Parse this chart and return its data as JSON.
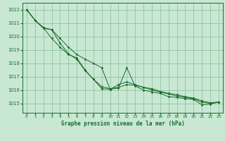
{
  "title": "Graphe pression niveau de la mer (hPa)",
  "background_color": "#c8e8d4",
  "grid_color": "#88bb99",
  "line_color": "#1a6b2a",
  "marker_color": "#1a6b2a",
  "xlim": [
    -0.5,
    23.5
  ],
  "ylim": [
    1014.3,
    1022.5
  ],
  "yticks": [
    1015,
    1016,
    1017,
    1018,
    1019,
    1020,
    1021,
    1022
  ],
  "xticks": [
    0,
    1,
    2,
    3,
    4,
    5,
    6,
    7,
    8,
    9,
    10,
    11,
    12,
    13,
    14,
    15,
    16,
    17,
    18,
    19,
    20,
    21,
    22,
    23
  ],
  "series": [
    [
      1022.0,
      1021.2,
      1020.6,
      1020.5,
      1019.5,
      1018.7,
      1018.3,
      1017.45,
      1016.8,
      1016.1,
      1016.05,
      1016.15,
      1017.65,
      1016.3,
      1016.0,
      1015.85,
      1015.75,
      1015.5,
      1015.45,
      1015.35,
      1015.3,
      1014.9,
      1014.95,
      1015.1
    ],
    [
      1022.0,
      1021.2,
      1020.65,
      1019.85,
      1019.2,
      1018.65,
      1018.4,
      1017.5,
      1016.8,
      1016.25,
      1016.1,
      1016.2,
      1016.4,
      1016.35,
      1016.2,
      1016.0,
      1015.85,
      1015.7,
      1015.55,
      1015.45,
      1015.35,
      1015.1,
      1015.0,
      1015.1
    ],
    [
      1022.0,
      1021.2,
      1020.65,
      1020.5,
      1019.85,
      1019.2,
      1018.65,
      1018.3,
      1018.0,
      1017.65,
      1016.05,
      1016.4,
      1016.6,
      1016.4,
      1016.2,
      1016.1,
      1015.9,
      1015.75,
      1015.65,
      1015.5,
      1015.4,
      1015.2,
      1015.05,
      1015.1
    ]
  ]
}
